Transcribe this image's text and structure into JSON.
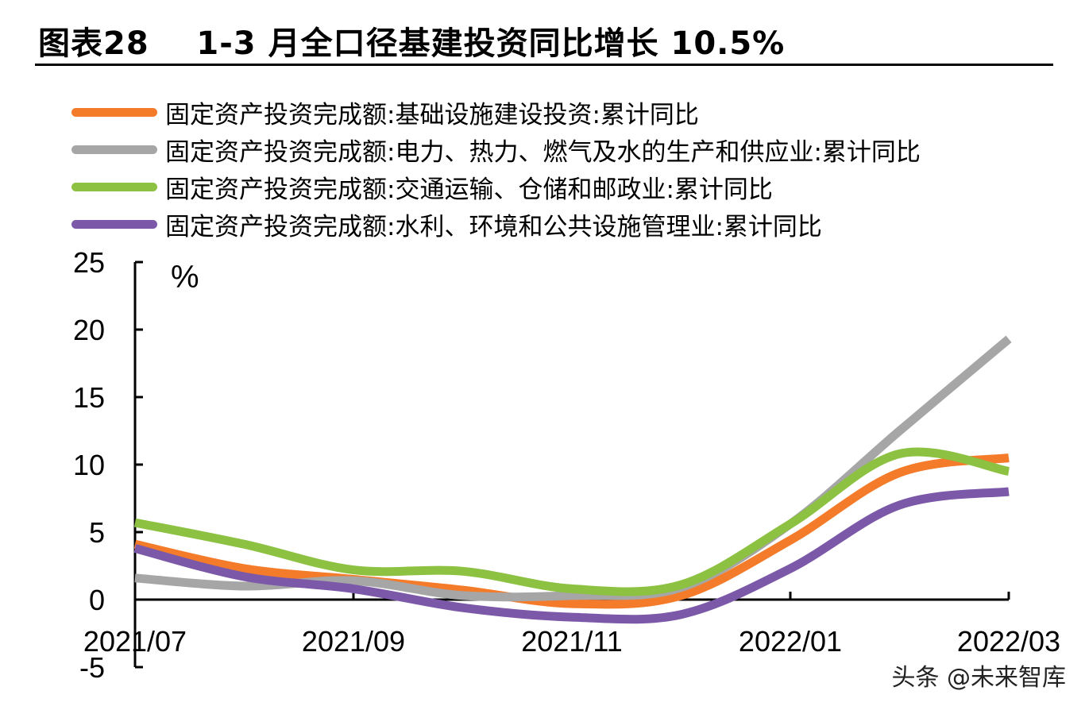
{
  "header": {
    "figure_label": "图表28",
    "title": "1-3 月全口径基建投资同比增长 10.5%"
  },
  "watermark": "头条 @未来智库",
  "chart_data": {
    "type": "line",
    "title": "1-3 月全口径基建投资同比增长 10.5%",
    "ylabel": "%",
    "xlabel": "",
    "ylim": [
      -5,
      25
    ],
    "yticks": [
      25,
      20,
      15,
      10,
      5,
      0,
      -5
    ],
    "x": [
      "2021/07",
      "2021/08",
      "2021/09",
      "2021/10",
      "2021/11",
      "2021/12",
      "2022/01",
      "2022/02",
      "2022/03"
    ],
    "xtick_labels": [
      "2021/07",
      "2021/09",
      "2021/11",
      "2022/01",
      "2022/03"
    ],
    "legend_position": "top",
    "series": [
      {
        "name": "固定资产投资完成额:基础设施建设投资:累计同比",
        "color": "#F47B2A",
        "values": [
          4.1,
          2.3,
          1.5,
          0.7,
          -0.3,
          0.3,
          4.4,
          9.4,
          10.5
        ]
      },
      {
        "name": "固定资产投资完成额:电力、热力、燃气及水的生产和供应业:累计同比",
        "color": "#A6A6A6",
        "values": [
          1.6,
          1.0,
          1.4,
          0.3,
          0.3,
          0.9,
          5.6,
          12.5,
          19.3
        ]
      },
      {
        "name": "固定资产投资完成额:交通运输、仓储和邮政业:累计同比",
        "color": "#8CC142",
        "values": [
          5.7,
          4.1,
          2.2,
          2.1,
          0.8,
          1.1,
          5.6,
          10.8,
          9.5
        ]
      },
      {
        "name": "固定资产投资完成额:水利、环境和公共设施管理业:累计同比",
        "color": "#7B59A8",
        "values": [
          3.8,
          1.7,
          0.8,
          -0.6,
          -1.3,
          -1.1,
          2.3,
          7.0,
          8.0
        ]
      }
    ]
  }
}
